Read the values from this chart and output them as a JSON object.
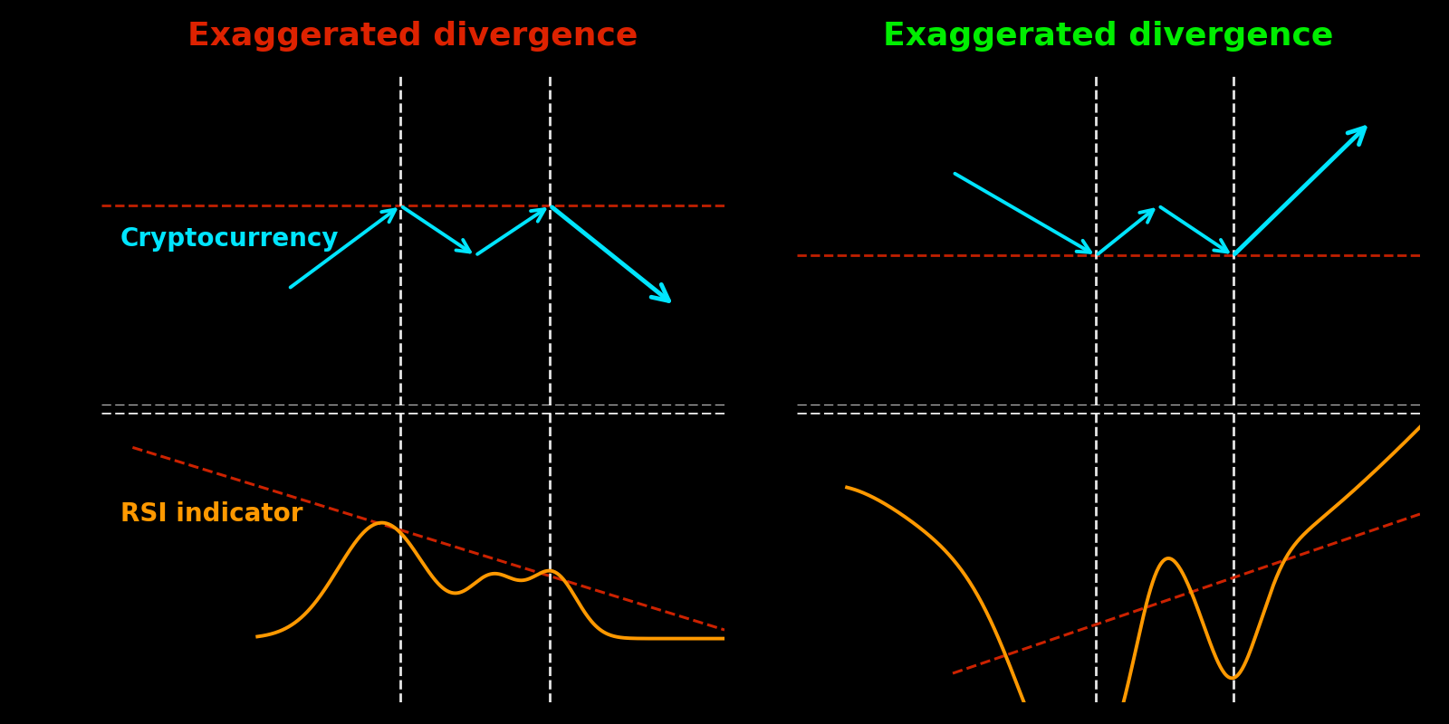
{
  "bg_color": "#000000",
  "cyan_color": "#00e5ff",
  "orange_color": "#ff9900",
  "red_dashed_color": "#cc2200",
  "white_dashed_color": "#ffffff",
  "title_left": "Exaggerated divergence",
  "title_right": "Exaggerated divergence",
  "title_left_color": "#dd2200",
  "title_right_color": "#00ee00",
  "label_crypto": "Cryptocurrency",
  "label_rsi": "RSI indicator",
  "label_color_crypto": "#00e5ff",
  "label_color_rsi": "#ff9900",
  "title_fontsize": 26,
  "label_fontsize": 20
}
